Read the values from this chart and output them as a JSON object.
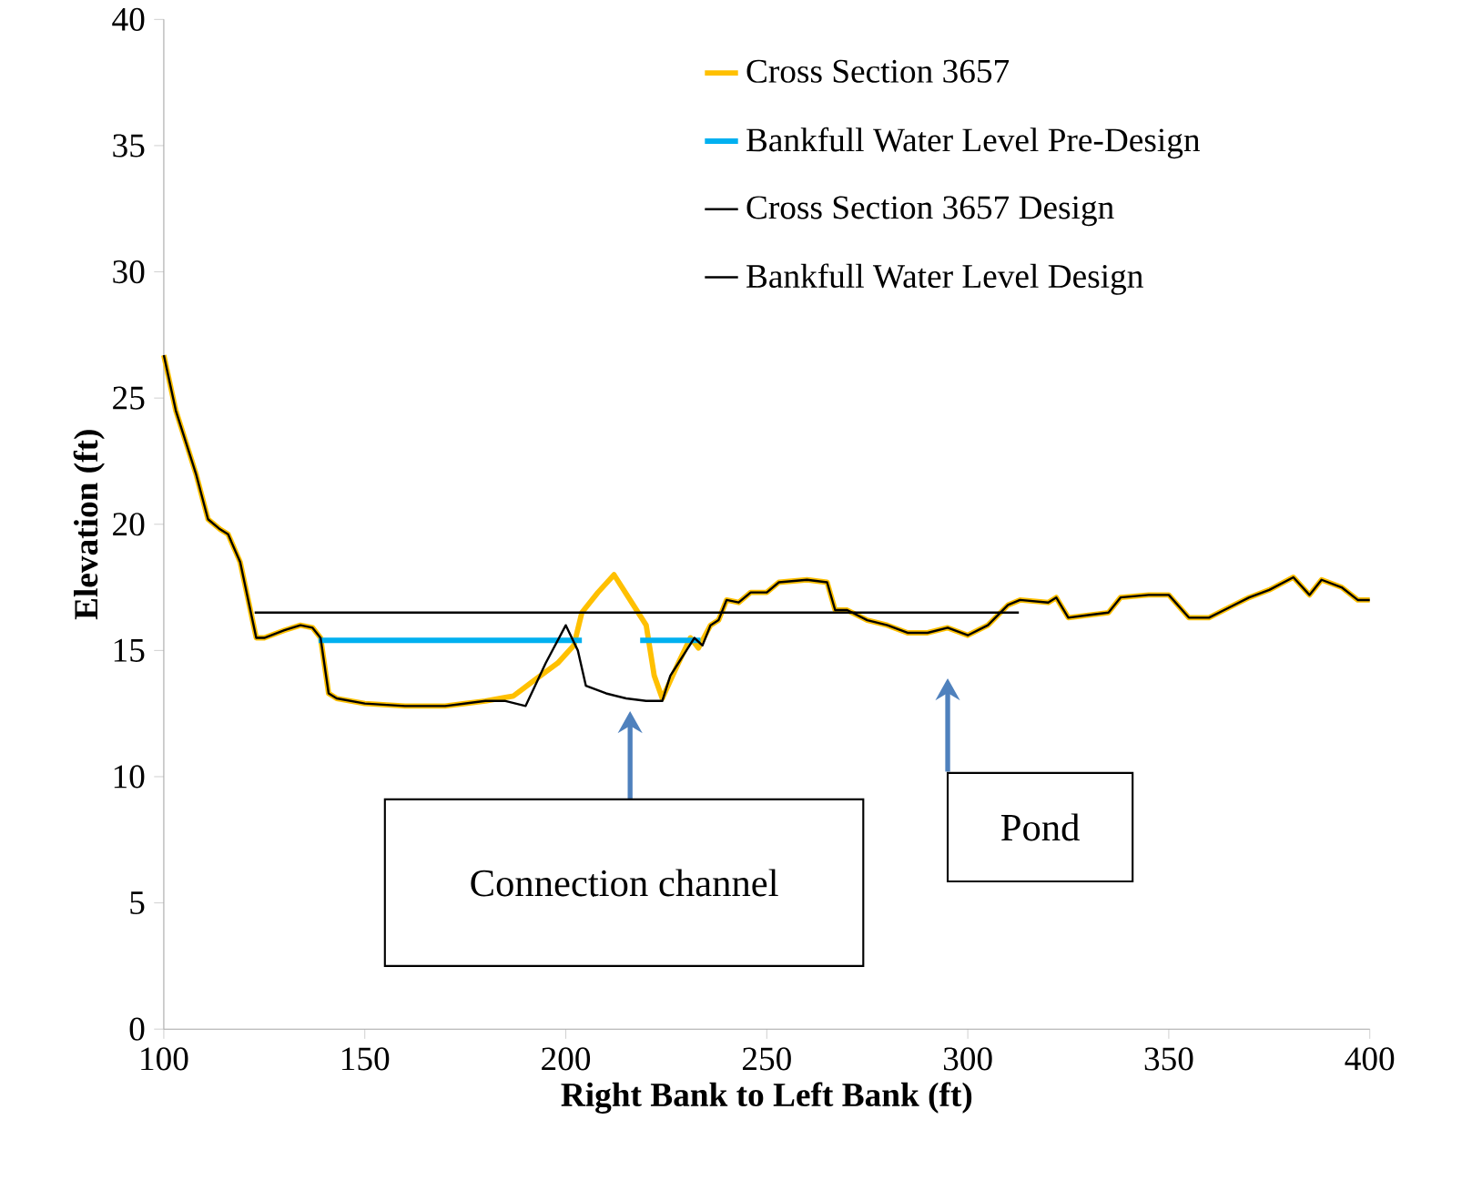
{
  "chart_data": {
    "type": "line",
    "xlabel": "Right Bank to Left Bank (ft)",
    "ylabel": "Elevation (ft)",
    "xlim": [
      100,
      400
    ],
    "ylim": [
      0,
      40
    ],
    "xticks": [
      100,
      150,
      200,
      250,
      300,
      350,
      400
    ],
    "yticks": [
      0,
      5,
      10,
      15,
      20,
      25,
      30,
      35,
      40
    ],
    "grid": false,
    "legend": "top right",
    "marker": "none",
    "line_style": "solid",
    "series": [
      {
        "name": "Cross Section 3657",
        "color": "#ffc000",
        "x": [
          100,
          103,
          108,
          111,
          114,
          116,
          119,
          121,
          123,
          125,
          130,
          134,
          137,
          139,
          141,
          143,
          150,
          160,
          170,
          180,
          187,
          192,
          198,
          202,
          204,
          208,
          212,
          216,
          220,
          222,
          224,
          226,
          228,
          231,
          233,
          236,
          238,
          240,
          243,
          246,
          250,
          253,
          260,
          265,
          267,
          270,
          275,
          280,
          285,
          290,
          295,
          300,
          305,
          310,
          313,
          320,
          322,
          325,
          330,
          335,
          338,
          345,
          350,
          355,
          360,
          365,
          370,
          375,
          381,
          385,
          388,
          393,
          397,
          400
        ],
        "values": [
          26.7,
          24.5,
          22,
          20.2,
          19.8,
          19.6,
          18.5,
          17,
          15.5,
          15.5,
          15.8,
          16,
          15.9,
          15.5,
          13.3,
          13.1,
          12.9,
          12.8,
          12.8,
          13,
          13.2,
          13.8,
          14.5,
          15.2,
          16.5,
          17.3,
          18,
          17,
          16,
          14,
          13.1,
          13.8,
          14.5,
          15.5,
          15.1,
          16,
          16.2,
          17,
          16.9,
          17.3,
          17.3,
          17.7,
          17.8,
          17.7,
          16.6,
          16.6,
          16.2,
          16,
          15.7,
          15.7,
          15.9,
          15.6,
          16,
          16.8,
          17,
          16.9,
          17.1,
          16.3,
          16.4,
          16.5,
          17.1,
          17.2,
          17.2,
          16.3,
          16.3,
          16.7,
          17.1,
          17.4,
          17.9,
          17.2,
          17.8,
          17.5,
          17,
          17
        ]
      },
      {
        "name": "Bankfull Water Level Pre-Design",
        "color": "#00b0f0",
        "x": [
          138.5,
          204,
          211,
          218.5,
          233.5
        ],
        "values": [
          15.4,
          15.4,
          null,
          15.4,
          15.4
        ]
      },
      {
        "name": "Cross Section 3657 Design",
        "color": "#000000",
        "x": [
          100,
          103,
          108,
          111,
          114,
          116,
          119,
          121,
          123,
          125,
          130,
          134,
          137,
          139,
          141,
          143,
          150,
          160,
          170,
          180,
          185,
          190,
          195,
          200,
          203,
          205,
          210,
          215,
          220,
          224,
          226,
          228,
          230,
          232,
          234,
          236,
          238,
          240,
          243,
          246,
          250,
          253,
          260,
          265,
          267,
          270,
          275,
          280,
          285,
          290,
          295,
          300,
          305,
          310,
          313,
          320,
          322,
          325,
          330,
          335,
          338,
          345,
          350,
          355,
          360,
          365,
          370,
          375,
          381,
          385,
          388,
          393,
          397,
          400
        ],
        "values": [
          26.7,
          24.5,
          22,
          20.2,
          19.8,
          19.6,
          18.5,
          17,
          15.5,
          15.5,
          15.8,
          16,
          15.9,
          15.5,
          13.3,
          13.1,
          12.9,
          12.8,
          12.8,
          13,
          13,
          12.8,
          14.5,
          16,
          15,
          13.6,
          13.3,
          13.1,
          13,
          13,
          14,
          14.5,
          15,
          15.5,
          15.2,
          16,
          16.2,
          17,
          16.9,
          17.3,
          17.3,
          17.7,
          17.8,
          17.7,
          16.6,
          16.6,
          16.2,
          16,
          15.7,
          15.7,
          15.9,
          15.6,
          16,
          16.8,
          17,
          16.9,
          17.1,
          16.3,
          16.4,
          16.5,
          17.1,
          17.2,
          17.2,
          16.3,
          16.3,
          16.7,
          17.1,
          17.4,
          17.9,
          17.2,
          17.8,
          17.5,
          17,
          17
        ]
      },
      {
        "name": "Bankfull Water Level Design",
        "color": "#000000",
        "x": [
          122.6,
          312.7
        ],
        "values": [
          16.5,
          16.5
        ]
      }
    ],
    "annotations": [
      "Connection channel",
      "Pond"
    ]
  }
}
